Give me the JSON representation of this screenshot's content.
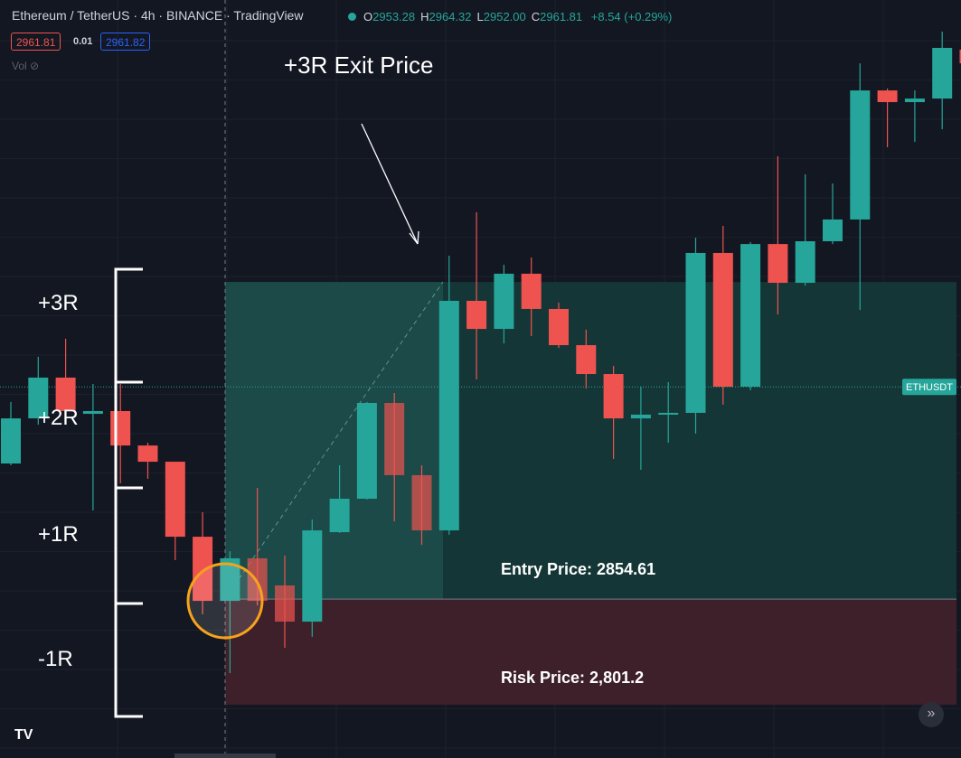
{
  "header": {
    "symbol": "Ethereum / TetherUS",
    "interval": "4h",
    "exchange": "BINANCE",
    "source": "TradingView",
    "ohlc": [
      {
        "label": "O",
        "value": "2953.28"
      },
      {
        "label": "H",
        "value": "2964.32"
      },
      {
        "label": "L",
        "value": "2952.00"
      },
      {
        "label": "C",
        "value": "2961.81"
      }
    ],
    "change": "+8.54 (+0.29%)",
    "sell": "2961.81",
    "spread": "0.01",
    "buy": "2961.82",
    "volume": "Vol"
  },
  "chart": {
    "ylim": [
      2774.3,
      3157.3
    ],
    "current_price": 2961.81,
    "symbol_badge": "ETHUSDT",
    "entry_price": 2854.61,
    "risk_price": 2801.2,
    "candles": [
      [
        2923.1,
        2954.2,
        2922.2,
        2945.9
      ],
      [
        2945.9,
        2977.0,
        2942.7,
        2966.5
      ],
      [
        2966.5,
        2986.1,
        2942.7,
        2949.6
      ],
      [
        2948.2,
        2963.3,
        2899.4,
        2949.6
      ],
      [
        2949.6,
        2963.3,
        2913.1,
        2932.2
      ],
      [
        2932.2,
        2933.6,
        2915.4,
        2924.0
      ],
      [
        2924.0,
        2924.0,
        2874.3,
        2886.1
      ],
      [
        2886.1,
        2898.5,
        2846.9,
        2853.7
      ],
      [
        2853.7,
        2878.8,
        2817.2,
        2875.2
      ],
      [
        2875.2,
        2910.8,
        2851.4,
        2853.7
      ],
      [
        2861.5,
        2876.6,
        2830.0,
        2843.2
      ],
      [
        2843.2,
        2894.8,
        2835.5,
        2889.3
      ],
      [
        2888.4,
        2922.2,
        2888.0,
        2905.3
      ],
      [
        2905.3,
        2954.2,
        2904.9,
        2953.7
      ],
      [
        2953.7,
        2958.7,
        2893.9,
        2917.2
      ],
      [
        2917.2,
        2922.2,
        2882.0,
        2889.3
      ],
      [
        2889.3,
        3028.1,
        2887.1,
        3005.3
      ],
      [
        3005.3,
        3050.0,
        2965.6,
        2991.1
      ],
      [
        2991.1,
        3023.5,
        2983.8,
        3019.0
      ],
      [
        3019.0,
        3027.2,
        2987.5,
        3001.2
      ],
      [
        3001.2,
        3004.4,
        2981.5,
        2982.9
      ],
      [
        2982.9,
        2990.7,
        2961.0,
        2968.3
      ],
      [
        2968.3,
        2972.4,
        2925.4,
        2945.9
      ],
      [
        2945.9,
        2961.9,
        2919.9,
        2947.8
      ],
      [
        2947.8,
        2964.2,
        2933.6,
        2948.7
      ],
      [
        2948.7,
        3037.2,
        2938.2,
        3029.5
      ],
      [
        3029.5,
        3043.2,
        2952.8,
        2961.9
      ],
      [
        2961.9,
        3035.0,
        2960.1,
        3034.0
      ],
      [
        3034.0,
        3078.3,
        2998.4,
        3014.4
      ],
      [
        3014.4,
        3069.2,
        3013.0,
        3035.4
      ],
      [
        3035.4,
        3064.6,
        3034.0,
        3046.4
      ],
      [
        3046.4,
        3125.3,
        3000.7,
        3111.6
      ],
      [
        3111.6,
        3112.6,
        3082.9,
        3105.7
      ],
      [
        3105.7,
        3111.6,
        3085.6,
        3107.5
      ],
      [
        3107.5,
        3141.3,
        3092.0,
        3133.1
      ],
      [
        3132.2,
        3140.0,
        3121.7,
        3125.3
      ]
    ]
  },
  "annotations": {
    "exit": "+3R Exit Price",
    "entry": "Entry Price: 2854.61",
    "risk": "Risk Price: 2,801.2",
    "r_levels": [
      "+3R",
      "+2R",
      "+1R",
      "-1R"
    ]
  }
}
